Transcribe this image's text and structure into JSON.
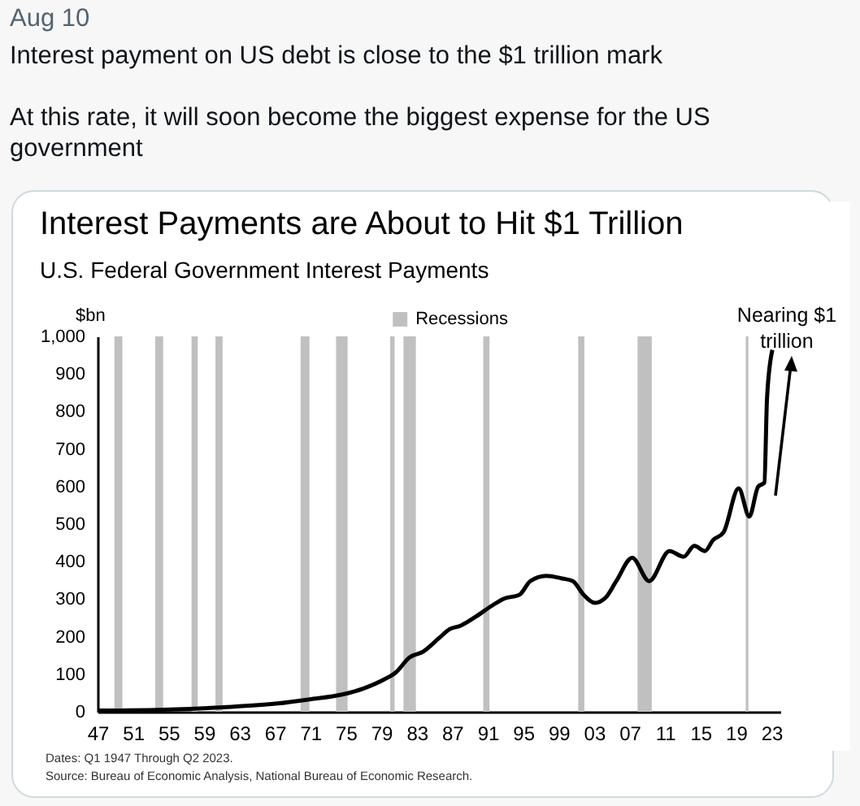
{
  "chart_data": {
    "type": "line",
    "title": "Interest Payments are About to Hit $1 Trillion",
    "subtitle": "U.S. Federal Government Interest Payments",
    "ylabel": "$bn",
    "annotations": [
      "Aug 10",
      "Interest payment on US debt is close to the $1 trillion mark",
      "At this rate, it will soon become the biggest expense for the US government",
      "Nearing $1 trillion",
      "Dates: Q1 1947 Through Q2 2023.",
      "Source: Bureau of Economic Analysis, National Bureau of Economic Research."
    ],
    "x": [
      1947,
      1955.2,
      1961.2,
      1967.3,
      1970.9,
      1974.6,
      1977,
      1979.4,
      1980.6,
      1982.2,
      1983.7,
      1985.5,
      1986.7,
      1987.9,
      1989.7,
      1991.5,
      1992.8,
      1994.6,
      1995.8,
      1997.6,
      1999.4,
      2000.6,
      2001.8,
      2003.1,
      2004.3,
      2005.5,
      2007.3,
      2009.2,
      2011.5,
      2013.1,
      2014.3,
      2015.5,
      2016.4,
      2017.6,
      2019.3,
      2020.5,
      2021.5,
      2022.2,
      2022.5,
      2023.1
    ],
    "series": [
      {
        "color": "#000000",
        "values": [
          3,
          6,
          12,
          22,
          33,
          46,
          62,
          87,
          104,
          145,
          160,
          196,
          220,
          229,
          254,
          283,
          301,
          312,
          348,
          362,
          355,
          348,
          312,
          290,
          304,
          348,
          410,
          348,
          428,
          413,
          442,
          428,
          457,
          478,
          595,
          520,
          600,
          610,
          836,
          964
        ]
      }
    ],
    "xlim": [
      1947,
      2024
    ],
    "xticks": [
      {
        "value": 1947,
        "label": "47"
      },
      {
        "value": 1951,
        "label": "51"
      },
      {
        "value": 1955,
        "label": "55"
      },
      {
        "value": 1959,
        "label": "59"
      },
      {
        "value": 1963,
        "label": "63"
      },
      {
        "value": 1967,
        "label": "67"
      },
      {
        "value": 1971,
        "label": "71"
      },
      {
        "value": 1975,
        "label": "75"
      },
      {
        "value": 1979,
        "label": "79"
      },
      {
        "value": 1983,
        "label": "83"
      },
      {
        "value": 1987,
        "label": "87"
      },
      {
        "value": 1991,
        "label": "91"
      },
      {
        "value": 1995,
        "label": "95"
      },
      {
        "value": 1999,
        "label": "99"
      },
      {
        "value": 2003,
        "label": "03"
      },
      {
        "value": 2007,
        "label": "07"
      },
      {
        "value": 2011,
        "label": "11"
      },
      {
        "value": 2015,
        "label": "15"
      },
      {
        "value": 2019,
        "label": "19"
      },
      {
        "value": 2023,
        "label": "23"
      }
    ],
    "ylim": [
      0,
      1000
    ],
    "yticks": [
      0,
      100,
      200,
      300,
      400,
      500,
      600,
      700,
      800,
      900,
      {
        "value": 1000,
        "label": "1,000"
      }
    ],
    "bands": [
      {
        "axis": "x",
        "from": 1948.9,
        "to": 1949.8,
        "label": "Recessions",
        "color": "#c0c0c0"
      },
      {
        "axis": "x",
        "from": 1953.5,
        "to": 1954.4,
        "color": "#c0c0c0"
      },
      {
        "axis": "x",
        "from": 1957.6,
        "to": 1958.3,
        "color": "#c0c0c0"
      },
      {
        "axis": "x",
        "from": 1960.3,
        "to": 1961.1,
        "color": "#c0c0c0"
      },
      {
        "axis": "x",
        "from": 1969.9,
        "to": 1970.9,
        "color": "#c0c0c0"
      },
      {
        "axis": "x",
        "from": 1973.9,
        "to": 1975.2,
        "color": "#c0c0c0"
      },
      {
        "axis": "x",
        "from": 1980.0,
        "to": 1980.5,
        "color": "#c0c0c0"
      },
      {
        "axis": "x",
        "from": 1981.5,
        "to": 1982.9,
        "color": "#c0c0c0"
      },
      {
        "axis": "x",
        "from": 1990.5,
        "to": 1991.2,
        "color": "#c0c0c0"
      },
      {
        "axis": "x",
        "from": 2001.2,
        "to": 2001.9,
        "color": "#c0c0c0"
      },
      {
        "axis": "x",
        "from": 2007.9,
        "to": 2009.5,
        "color": "#c0c0c0"
      },
      {
        "axis": "x",
        "from": 2020.1,
        "to": 2020.4,
        "color": "#c0c0c0"
      }
    ],
    "grid": false,
    "legend": "top"
  }
}
